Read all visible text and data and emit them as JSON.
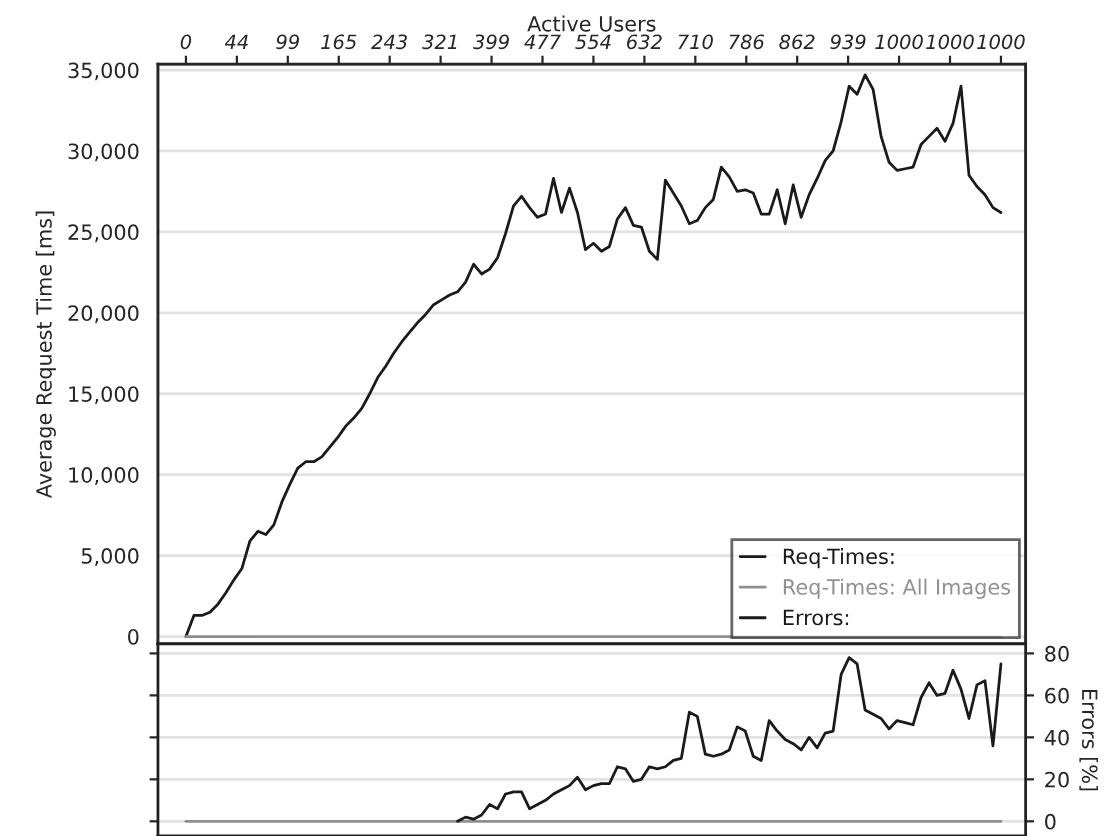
{
  "chart_data": [
    {
      "type": "line",
      "ylabel": "Average Request Time [ms]",
      "x2label": "Active Users",
      "annotations": [
        "0",
        "44",
        "99",
        "165",
        "243",
        "321",
        "399",
        "477",
        "554",
        "632",
        "710",
        "786",
        "862",
        "939",
        "1000",
        "1000",
        "1000"
      ],
      "categories": [
        null,
        null,
        null,
        null,
        null,
        null,
        null,
        null,
        null,
        null,
        null,
        null,
        null,
        null,
        null,
        null,
        null,
        null,
        null,
        null,
        null,
        null,
        null,
        null,
        null,
        null,
        null,
        null,
        null,
        null,
        null,
        null,
        null,
        null,
        null,
        null,
        null,
        null,
        null,
        null,
        null,
        null,
        null,
        null,
        null,
        null,
        null,
        null,
        null,
        null,
        null,
        null,
        null,
        null,
        null,
        null,
        null,
        null,
        null,
        null,
        null,
        null,
        null,
        null,
        null,
        null,
        null,
        null,
        null,
        null,
        null,
        null,
        null,
        null,
        null,
        null,
        null,
        null,
        null,
        null,
        null,
        null,
        null,
        null,
        null,
        null,
        null,
        null,
        null,
        null,
        null,
        null,
        null,
        null,
        null,
        null,
        null,
        null,
        null,
        null,
        null,
        null,
        null
      ],
      "ylim": [
        -460,
        35370
      ],
      "yticks": [
        0,
        {
          "value": 5000,
          "label": "5,000"
        },
        {
          "value": 10000,
          "label": "10,000"
        },
        {
          "value": 15000,
          "label": "15,000"
        },
        {
          "value": 20000,
          "label": "20,000"
        },
        {
          "value": 25000,
          "label": "25,000"
        },
        {
          "value": 30000,
          "label": "30,000"
        },
        {
          "value": 35000,
          "label": "35,000"
        }
      ],
      "grid": "y",
      "legend": "bottom right",
      "series": [
        {
          "name": "Req-Times:",
          "color": "#1a1a1a",
          "values": [
            0,
            1300,
            1300,
            1500,
            2000,
            2700,
            3500,
            4200,
            5900,
            6500,
            6300,
            6900,
            8300,
            9400,
            10400,
            10800,
            10800,
            11100,
            11700,
            12300,
            13000,
            13500,
            14100,
            15000,
            16000,
            16700,
            17500,
            18200,
            18800,
            19400,
            19900,
            20500,
            20800,
            21100,
            21300,
            21900,
            23000,
            22400,
            22700,
            23400,
            24900,
            26600,
            27200,
            26500,
            25900,
            26100,
            28300,
            26200,
            27700,
            26200,
            23900,
            24300,
            23800,
            24100,
            25800,
            26500,
            25400,
            25300,
            23800,
            23300,
            28200,
            27400,
            26600,
            25500,
            25700,
            26500,
            27000,
            29000,
            28400,
            27500,
            27600,
            27400,
            26100,
            26100,
            27600,
            25500,
            27900,
            25900,
            27300,
            28300,
            29400,
            30000,
            31800,
            34000,
            33500,
            34700,
            33800,
            30900,
            29300,
            28800,
            28900,
            29000,
            30400,
            30900,
            31400,
            30600,
            31700,
            34000,
            28500,
            27800,
            27300,
            26500,
            26200
          ]
        },
        {
          "name": "Req-Times: All Images",
          "color": "#909090",
          "values": [
            0,
            0,
            0,
            0,
            0,
            0,
            0,
            0,
            0,
            0,
            0,
            0,
            0,
            0,
            0,
            0,
            0,
            0,
            0,
            0,
            0,
            0,
            0,
            0,
            0,
            0,
            0,
            0,
            0,
            0,
            0,
            0,
            0,
            0,
            0,
            0,
            0,
            0,
            0,
            0,
            0,
            0,
            0,
            0,
            0,
            0,
            0,
            0,
            0,
            0,
            0,
            0,
            0,
            0,
            0,
            0,
            0,
            0,
            0,
            0,
            0,
            0,
            0,
            0,
            0,
            0,
            0,
            0,
            0,
            0,
            0,
            0,
            0,
            0,
            0,
            0,
            0,
            0,
            0,
            0,
            0,
            0,
            0,
            0,
            0,
            0,
            0,
            0,
            0,
            0,
            0,
            0,
            0,
            0,
            0,
            0,
            0,
            0,
            0,
            0,
            0,
            0,
            0
          ]
        }
      ]
    },
    {
      "type": "line",
      "ylabel": "Errors [%]",
      "categories": [
        null,
        null,
        null,
        null,
        null,
        null,
        null,
        null,
        null,
        null,
        null,
        null,
        null,
        null,
        null,
        null,
        null,
        null,
        null,
        null,
        null,
        null,
        null,
        null,
        null,
        null,
        null,
        null,
        null,
        null,
        null,
        null,
        null,
        null,
        null,
        null,
        null,
        null,
        null,
        null,
        null,
        null,
        null,
        null,
        null,
        null,
        null,
        null,
        null,
        null,
        null,
        null,
        null,
        null,
        null,
        null,
        null,
        null,
        null,
        null,
        null,
        null,
        null,
        null,
        null,
        null,
        null,
        null,
        null,
        null,
        null,
        null,
        null,
        null,
        null,
        null,
        null,
        null,
        null,
        null,
        null,
        null,
        null,
        null,
        null,
        null,
        null,
        null,
        null,
        null,
        null,
        null,
        null,
        null,
        null,
        null,
        null,
        null,
        null,
        null,
        null,
        null,
        null
      ],
      "ylim": [
        -7,
        84.5
      ],
      "yticks": [
        0,
        20,
        40,
        60,
        80
      ],
      "grid": "y",
      "series": [
        {
          "color": "#909090",
          "values": [
            0,
            0,
            0,
            0,
            0,
            0,
            0,
            0,
            0,
            0,
            0,
            0,
            0,
            0,
            0,
            0,
            0,
            0,
            0,
            0,
            0,
            0,
            0,
            0,
            0,
            0,
            0,
            0,
            0,
            0,
            0,
            0,
            0,
            0,
            0,
            0,
            0,
            0,
            0,
            0,
            0,
            0,
            0,
            0,
            0,
            0,
            0,
            0,
            0,
            0,
            0,
            0,
            0,
            0,
            0,
            0,
            0,
            0,
            0,
            0,
            0,
            0,
            0,
            0,
            0,
            0,
            0,
            0,
            0,
            0,
            0,
            0,
            0,
            0,
            0,
            0,
            0,
            0,
            0,
            0,
            0,
            0,
            0,
            0,
            0,
            0,
            0,
            0,
            0,
            0,
            0,
            0,
            0,
            0,
            0,
            0,
            0,
            0,
            0,
            0,
            0,
            0,
            0
          ]
        },
        {
          "name": "Errors:",
          "color": "#1a1a1a",
          "values": [
            null,
            null,
            null,
            null,
            null,
            null,
            null,
            null,
            null,
            null,
            null,
            null,
            null,
            null,
            null,
            null,
            null,
            null,
            null,
            null,
            null,
            null,
            null,
            null,
            null,
            null,
            null,
            null,
            null,
            null,
            null,
            null,
            null,
            null,
            0,
            2,
            1,
            3,
            8,
            6,
            13,
            14,
            14,
            6,
            8,
            10,
            13,
            15,
            17,
            21,
            15,
            17,
            18,
            18,
            26,
            25,
            19,
            20,
            26,
            25,
            26,
            29,
            30,
            52,
            50,
            32,
            31,
            32,
            34,
            45,
            43,
            31,
            29,
            48,
            43,
            39,
            37,
            34,
            40,
            35,
            42,
            43,
            70,
            78,
            75,
            53,
            51,
            49,
            44,
            48,
            47,
            46,
            59,
            66,
            60,
            61,
            72,
            63,
            49,
            65,
            67,
            36,
            75
          ]
        }
      ]
    }
  ]
}
